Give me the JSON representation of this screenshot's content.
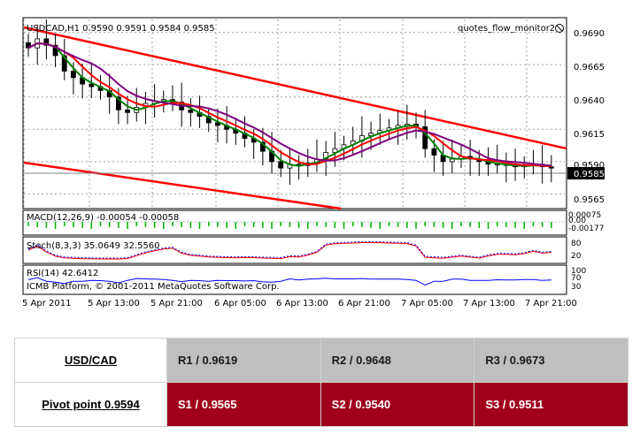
{
  "chart": {
    "title_line": "USDCAD,H1  0.9590 0.9591 0.9584 0.9585",
    "indicator_name": "quotes_flow_monitor2",
    "current_price": "0.9585",
    "price_ticks": [
      "0.9690",
      "0.9665",
      "0.9640",
      "0.9615",
      "0.9590",
      "0.9565"
    ],
    "macd_label": "MACD(12,26,9) -0.00054 -0.00058",
    "macd_ticks": [
      "0.00075",
      "0.00",
      "-0.00177"
    ],
    "stoch_label": "Stoch(8,3,3) 35.0649 32.5560",
    "stoch_ticks": [
      "80",
      "20"
    ],
    "rsi_label": "RSI(14) 42.6412",
    "rsi_ticks": [
      "100",
      "70",
      "30"
    ],
    "copyright": "ICMB Platform, © 2001-2011 MetaQuotes Software Corp.",
    "time_labels": [
      "5 Apr 2011",
      "5 Apr 13:00",
      "5 Apr 21:00",
      "6 Apr 05:00",
      "6 Apr 13:00",
      "6 Apr 21:00",
      "7 Apr 05:00",
      "7 Apr 13:00",
      "7 Apr 21:00"
    ],
    "colors": {
      "channel": "#ff0000",
      "ma_fast": "#008000",
      "ma_slow": "#800080",
      "ma_mid": "#ff0000",
      "macd_hist": "#00b000",
      "grid": "#a0a0a0"
    }
  },
  "chart_data": {
    "type": "line",
    "title": "USDCAD,H1",
    "series": [
      {
        "name": "",
        "values": [
          0.9678,
          0.9685,
          0.968,
          0.9672,
          0.966,
          0.9655,
          0.965,
          0.9648,
          0.9645,
          0.964,
          0.963,
          0.9628,
          0.9632,
          0.9635,
          0.9637,
          0.9638,
          0.9636,
          0.963,
          0.9628,
          0.9625,
          0.962,
          0.9618,
          0.9615,
          0.9612,
          0.9608,
          0.9605,
          0.9598,
          0.959,
          0.9585,
          0.9588,
          0.9587,
          0.9589,
          0.9592,
          0.9597,
          0.96,
          0.9603,
          0.9606,
          0.961,
          0.9612,
          0.9614,
          0.9616,
          0.9618,
          0.9619,
          0.9617,
          0.96,
          0.9595,
          0.959,
          0.9592,
          0.9594,
          0.9592,
          0.959,
          0.9588,
          0.9588,
          0.9587,
          0.9586,
          0.9587,
          0.9588,
          0.9586,
          0.9585
        ]
      }
    ],
    "ylim": [
      0.9555,
      0.97
    ],
    "xlabel": "",
    "ylabel": ""
  },
  "table": {
    "pair": "USD/CAD",
    "pivot": "Pivot point 0.9594",
    "r1": "R1 / 0.9619",
    "r2": "R2 / 0.9648",
    "r3": "R3 / 0.9673",
    "s1": "S1 / 0.9565",
    "s2": "S2 / 0.9540",
    "s3": "S3 / 0.9511"
  }
}
